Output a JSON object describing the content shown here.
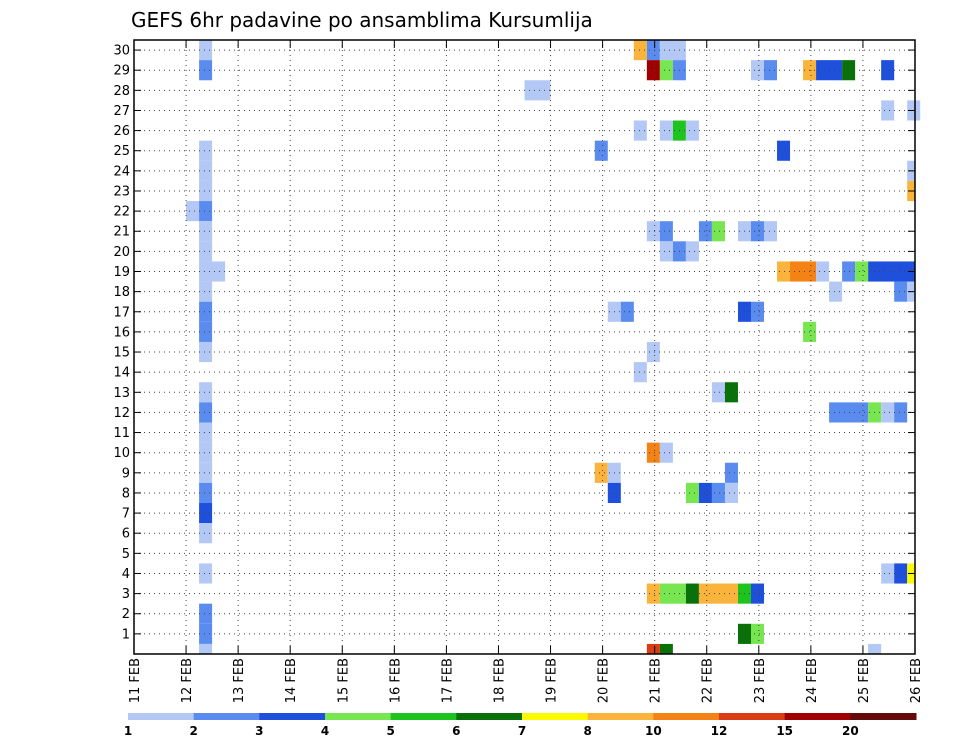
{
  "chart_data": {
    "type": "heatmap",
    "title": "GEFS 6hr padavine po ansamblima Kursumlija",
    "xlabel": "",
    "ylabel": "",
    "x_ticks": [
      "11 FEB",
      "12 FEB",
      "13 FEB",
      "14 FEB",
      "15 FEB",
      "16 FEB",
      "17 FEB",
      "18 FEB",
      "19 FEB",
      "20 FEB",
      "21 FEB",
      "22 FEB",
      "23 FEB",
      "24 FEB",
      "25 FEB",
      "26 FEB"
    ],
    "y_ticks": [
      1,
      2,
      3,
      4,
      5,
      6,
      7,
      8,
      9,
      10,
      11,
      12,
      13,
      14,
      15,
      16,
      17,
      18,
      19,
      20,
      21,
      22,
      23,
      24,
      25,
      26,
      27,
      28,
      29,
      30
    ],
    "xlim": [
      0,
      15
    ],
    "ylim": [
      0,
      30
    ],
    "grid": "dotted",
    "colorbar": {
      "labels": [
        "1",
        "2",
        "3",
        "4",
        "5",
        "6",
        "7",
        "8",
        "10",
        "12",
        "15",
        "20"
      ],
      "colors": [
        "#b4c8f5",
        "#5a8cf0",
        "#1e50dc",
        "#78e650",
        "#1ec31e",
        "#0a700a",
        "#fafa00",
        "#fab43c",
        "#f58214",
        "#dc3c14",
        "#a00000",
        "#640a0a"
      ]
    },
    "series_note": "cells: [member, start_x_day_offset, end_x_day_offset, color_class]",
    "cells": [
      [
        30,
        1.25,
        1.5,
        1
      ],
      [
        30,
        9.6,
        9.85,
        8
      ],
      [
        30,
        9.85,
        10.1,
        2
      ],
      [
        30,
        10.1,
        10.6,
        1
      ],
      [
        29,
        1.25,
        1.5,
        2
      ],
      [
        29,
        9.85,
        10.1,
        11
      ],
      [
        29,
        10.1,
        10.35,
        4
      ],
      [
        29,
        10.35,
        10.6,
        2
      ],
      [
        29,
        11.85,
        12.1,
        1
      ],
      [
        29,
        12.1,
        12.35,
        2
      ],
      [
        29,
        12.85,
        13.1,
        8
      ],
      [
        29,
        13.1,
        13.6,
        3
      ],
      [
        29,
        13.6,
        13.85,
        6
      ],
      [
        29,
        14.35,
        14.6,
        3
      ],
      [
        28,
        7.5,
        8.0,
        1
      ],
      [
        27,
        14.35,
        14.6,
        1
      ],
      [
        27,
        14.85,
        15.1,
        1
      ],
      [
        26,
        9.6,
        9.85,
        1
      ],
      [
        26,
        10.1,
        10.35,
        1
      ],
      [
        26,
        10.35,
        10.6,
        5
      ],
      [
        26,
        10.6,
        10.85,
        1
      ],
      [
        25,
        1.25,
        1.5,
        1
      ],
      [
        25,
        8.85,
        9.1,
        2
      ],
      [
        25,
        12.35,
        12.6,
        3
      ],
      [
        24,
        1.25,
        1.5,
        1
      ],
      [
        24,
        14.85,
        15.0,
        1
      ],
      [
        23,
        1.25,
        1.5,
        1
      ],
      [
        23,
        14.85,
        15.0,
        8
      ],
      [
        22,
        1.0,
        1.25,
        1
      ],
      [
        22,
        1.25,
        1.5,
        2
      ],
      [
        21,
        1.25,
        1.5,
        1
      ],
      [
        21,
        9.85,
        10.1,
        1
      ],
      [
        21,
        10.1,
        10.35,
        2
      ],
      [
        21,
        10.85,
        11.1,
        2
      ],
      [
        21,
        11.1,
        11.35,
        4
      ],
      [
        21,
        11.6,
        11.85,
        1
      ],
      [
        21,
        11.85,
        12.1,
        2
      ],
      [
        21,
        12.1,
        12.35,
        1
      ],
      [
        20,
        1.25,
        1.5,
        1
      ],
      [
        20,
        10.1,
        10.35,
        1
      ],
      [
        20,
        10.35,
        10.6,
        2
      ],
      [
        20,
        10.6,
        10.85,
        1
      ],
      [
        19,
        1.25,
        1.75,
        1
      ],
      [
        19,
        12.35,
        12.6,
        8
      ],
      [
        19,
        12.6,
        13.1,
        9
      ],
      [
        19,
        13.1,
        13.35,
        1
      ],
      [
        19,
        13.6,
        13.85,
        2
      ],
      [
        19,
        13.85,
        14.1,
        4
      ],
      [
        19,
        14.1,
        15.0,
        3
      ],
      [
        18,
        1.25,
        1.5,
        1
      ],
      [
        18,
        13.35,
        13.6,
        1
      ],
      [
        18,
        14.6,
        14.85,
        2
      ],
      [
        18,
        14.85,
        15.0,
        1
      ],
      [
        17,
        1.25,
        1.5,
        2
      ],
      [
        17,
        9.1,
        9.35,
        1
      ],
      [
        17,
        9.35,
        9.6,
        2
      ],
      [
        17,
        11.6,
        11.85,
        3
      ],
      [
        17,
        11.85,
        12.1,
        2
      ],
      [
        16,
        1.25,
        1.5,
        2
      ],
      [
        16,
        12.85,
        13.1,
        4
      ],
      [
        15,
        1.25,
        1.5,
        1
      ],
      [
        15,
        9.85,
        10.1,
        1
      ],
      [
        14,
        9.6,
        9.85,
        1
      ],
      [
        13,
        1.25,
        1.5,
        1
      ],
      [
        13,
        11.1,
        11.35,
        1
      ],
      [
        13,
        11.35,
        11.6,
        6
      ],
      [
        12,
        1.25,
        1.5,
        2
      ],
      [
        12,
        13.35,
        14.1,
        2
      ],
      [
        12,
        14.1,
        14.35,
        4
      ],
      [
        12,
        14.35,
        14.6,
        1
      ],
      [
        12,
        14.6,
        14.85,
        2
      ],
      [
        11,
        1.25,
        1.5,
        1
      ],
      [
        10,
        1.25,
        1.5,
        1
      ],
      [
        10,
        9.85,
        10.1,
        9
      ],
      [
        10,
        10.1,
        10.35,
        1
      ],
      [
        9,
        1.25,
        1.5,
        1
      ],
      [
        9,
        8.85,
        9.1,
        8
      ],
      [
        9,
        9.1,
        9.35,
        1
      ],
      [
        9,
        11.35,
        11.6,
        2
      ],
      [
        8,
        1.25,
        1.5,
        2
      ],
      [
        8,
        9.1,
        9.35,
        3
      ],
      [
        8,
        10.6,
        10.85,
        4
      ],
      [
        8,
        10.85,
        11.1,
        3
      ],
      [
        8,
        11.1,
        11.35,
        2
      ],
      [
        8,
        11.35,
        11.6,
        1
      ],
      [
        7,
        1.25,
        1.5,
        3
      ],
      [
        6,
        1.25,
        1.5,
        1
      ],
      [
        4,
        1.25,
        1.5,
        1
      ],
      [
        4,
        14.35,
        14.6,
        1
      ],
      [
        4,
        14.6,
        14.85,
        3
      ],
      [
        4,
        14.85,
        15.0,
        7
      ],
      [
        3,
        9.85,
        10.1,
        8
      ],
      [
        3,
        10.1,
        10.6,
        4
      ],
      [
        3,
        10.6,
        10.85,
        6
      ],
      [
        3,
        10.85,
        11.6,
        8
      ],
      [
        3,
        11.6,
        11.85,
        5
      ],
      [
        3,
        11.85,
        12.1,
        3
      ],
      [
        2,
        1.25,
        1.5,
        2
      ],
      [
        1,
        1.25,
        1.5,
        2
      ],
      [
        1,
        11.6,
        11.85,
        6
      ],
      [
        1,
        11.85,
        12.1,
        4
      ],
      [
        0,
        1.25,
        1.5,
        1
      ],
      [
        0,
        9.85,
        10.1,
        10
      ],
      [
        0,
        10.1,
        10.35,
        6
      ],
      [
        0,
        14.1,
        14.35,
        1
      ]
    ]
  }
}
